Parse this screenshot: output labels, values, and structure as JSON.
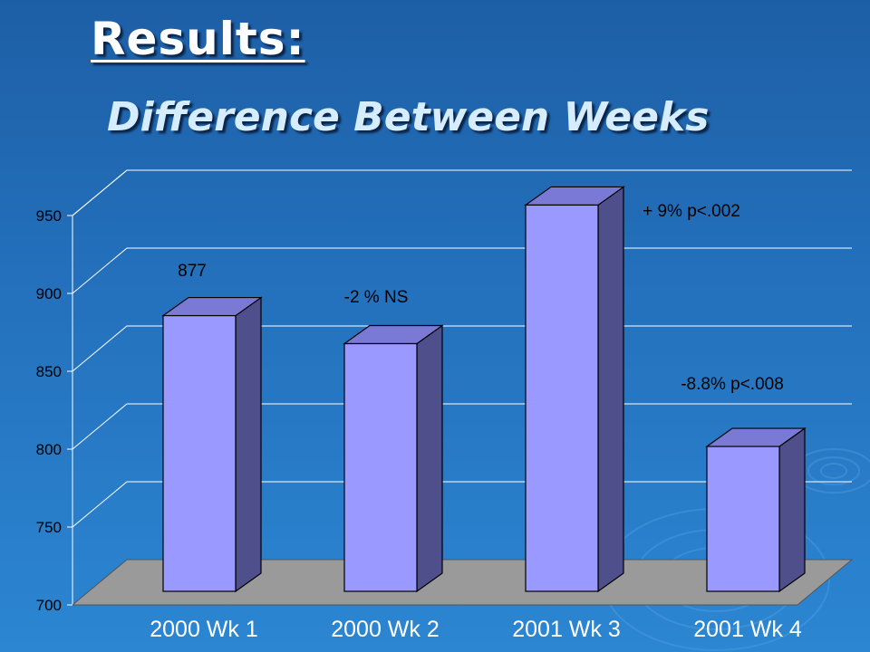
{
  "slide": {
    "title": "Results:",
    "subtitle": "Difference Between Weeks"
  },
  "colors": {
    "background": "#2471bd",
    "bar_front": "#9999ff",
    "bar_side": "#4f4f8c",
    "bar_top": "#7a7ad6",
    "floor": "#9a9a9a",
    "gridline": "#ffffff"
  },
  "chart_data": {
    "type": "bar",
    "style": "3d",
    "categories": [
      "2000 Wk 1",
      "2000 Wk 2",
      "2001 Wk 3",
      "2001 Wk 4"
    ],
    "values": [
      877,
      859,
      948,
      793
    ],
    "ylim": [
      700,
      950
    ],
    "yticks": [
      700,
      750,
      800,
      850,
      900,
      950
    ],
    "ytick_labels": [
      "700",
      "750",
      "800",
      "850",
      "900",
      "950"
    ],
    "grid": true,
    "legend": "none",
    "annotations": [
      {
        "text": "877",
        "category": "2000 Wk 1"
      },
      {
        "text": "-2 % NS",
        "category": "2000 Wk 2"
      },
      {
        "text": "+ 9% p<.002",
        "category": "2001 Wk 3"
      },
      {
        "text": "-8.8% p<.008",
        "category": "2001 Wk 4"
      }
    ]
  }
}
